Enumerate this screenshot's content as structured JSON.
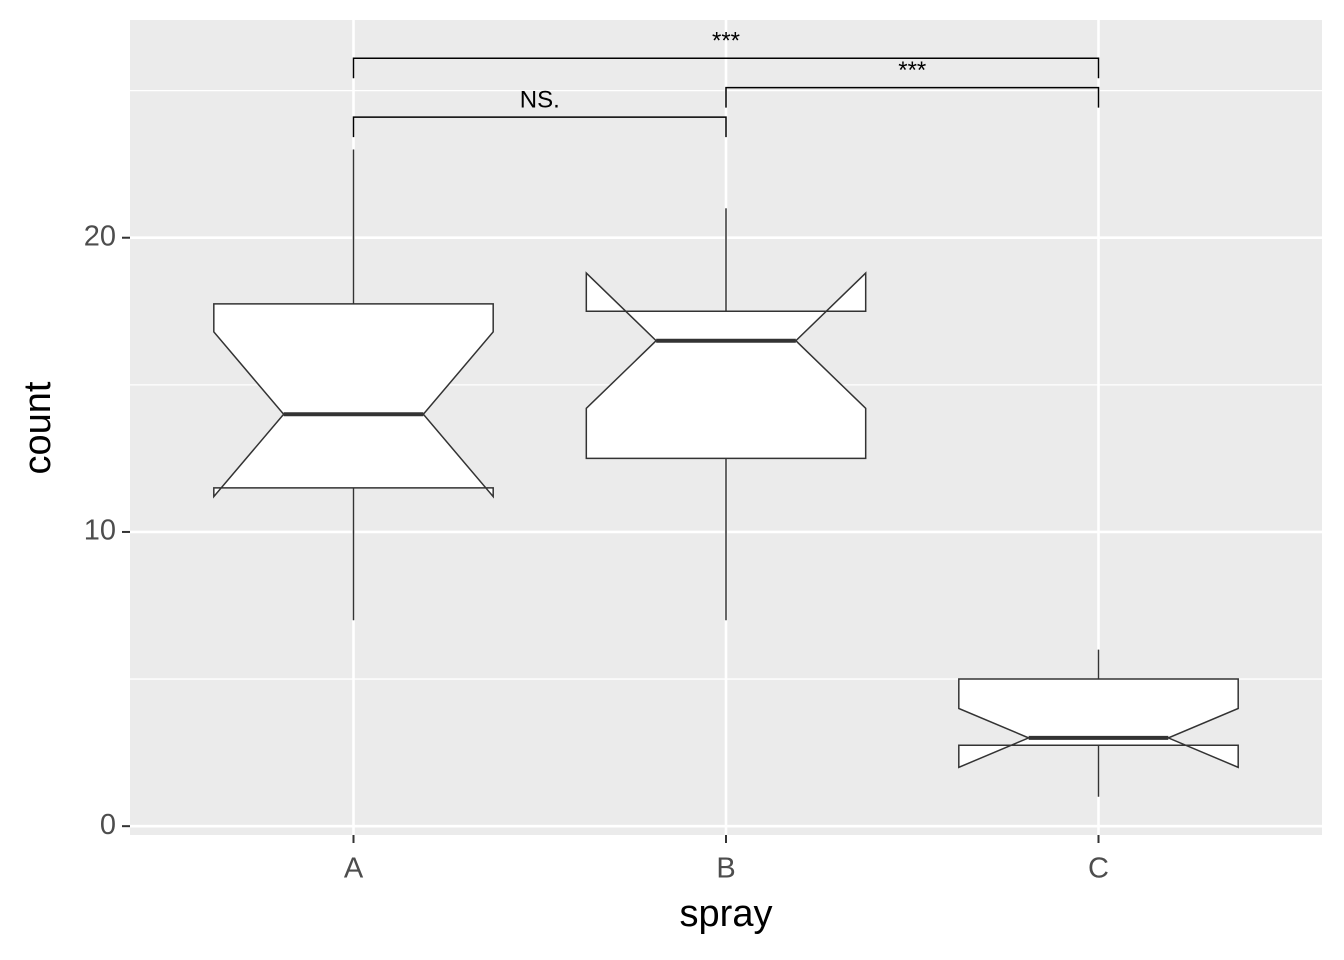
{
  "chart_data": {
    "type": "boxplot",
    "x_label": "spray",
    "y_label": "count",
    "categories": [
      "A",
      "B",
      "C"
    ],
    "boxes": [
      {
        "low": 7,
        "q1": 11.5,
        "median": 14,
        "q3": 17.75,
        "high": 23,
        "notch_low": 11.2,
        "notch_high": 16.8
      },
      {
        "low": 7,
        "q1": 12.5,
        "median": 16.5,
        "q3": 17.5,
        "high": 21,
        "notch_low": 14.2,
        "notch_high": 18.8
      },
      {
        "low": 1,
        "q1": 2.75,
        "median": 3,
        "q3": 5,
        "high": 6,
        "notch_low": 2,
        "notch_high": 4
      }
    ],
    "fill": "#ffffff",
    "stroke": "#333333",
    "comparisons": [
      {
        "from": "A",
        "to": "B",
        "y": 24.1,
        "label": "NS."
      },
      {
        "from": "B",
        "to": "C",
        "y": 25.1,
        "label": "***"
      },
      {
        "from": "A",
        "to": "C",
        "y": 26.1,
        "label": "***"
      }
    ],
    "ylim": [
      -0.3,
      27.4
    ],
    "yticks": [
      0,
      10,
      20
    ],
    "minor_yticks": [
      5,
      15,
      25
    ],
    "grid": true
  }
}
